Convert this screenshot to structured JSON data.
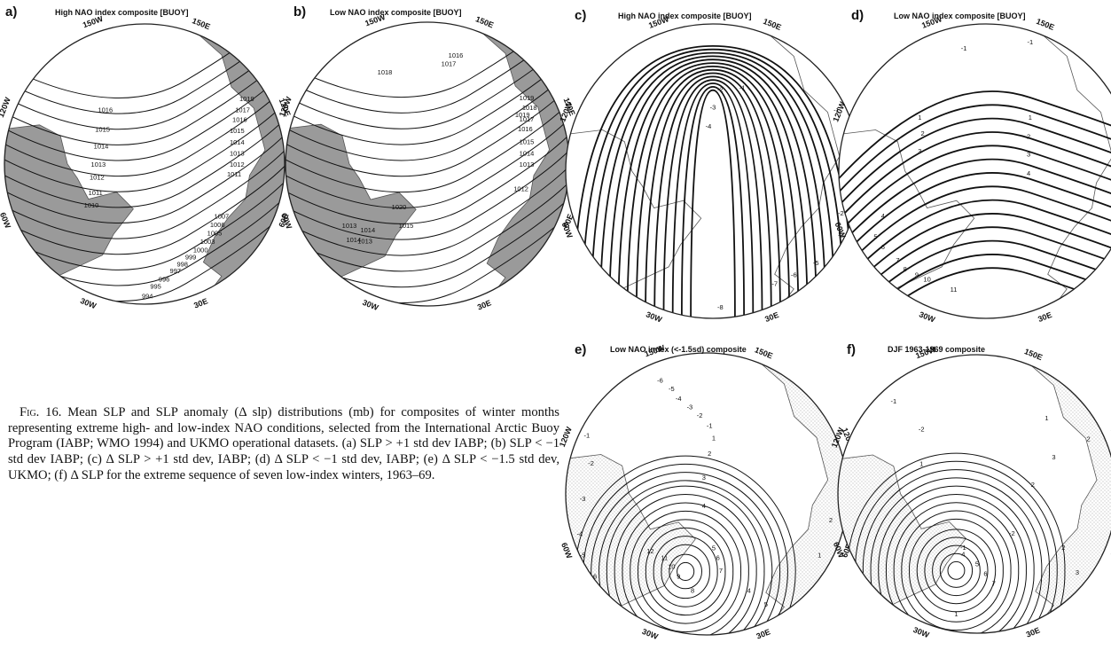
{
  "figure": {
    "panels": [
      {
        "id": "a",
        "label": "a)",
        "title": "High NAO index composite [BUOY]",
        "shaded_land": true,
        "longitudes": [
          "150W",
          "150E",
          "120W",
          "120E",
          "60W",
          "60E",
          "30W",
          "30E"
        ],
        "contour_labels": [
          "1016",
          "1016",
          "1015",
          "1014",
          "1013",
          "1012",
          "1011",
          "1010",
          "1019",
          "1017",
          "1016",
          "1015",
          "1014",
          "1013",
          "1012",
          "1011",
          "1007",
          "1006",
          "1005",
          "1003",
          "1000",
          "999",
          "998",
          "997",
          "996",
          "995",
          "994"
        ]
      },
      {
        "id": "b",
        "label": "b)",
        "title": "Low NAO index composite [BUOY]",
        "shaded_land": true,
        "longitudes": [
          "150W",
          "150E",
          "120W",
          "120E",
          "60W",
          "60E",
          "30W",
          "30E"
        ],
        "contour_labels": [
          "1016",
          "1017",
          "1018",
          "1019",
          "1020",
          "1019",
          "1018",
          "1017",
          "1016",
          "1015",
          "1014",
          "1013",
          "1012",
          "1015",
          "1014",
          "1013",
          "1013",
          "1014"
        ]
      },
      {
        "id": "c",
        "label": "c)",
        "title": "High NAO index composite [BUOY]",
        "shaded_land": false,
        "longitudes": [
          "150W",
          "150E",
          "120W",
          "120E",
          "60W",
          "60E",
          "30W",
          "30E"
        ],
        "contour_labels": [
          "-1",
          "-2",
          "-3",
          "-4",
          "-1",
          "-3",
          "-5",
          "-6",
          "-7",
          "-8",
          "-2"
        ]
      },
      {
        "id": "d",
        "label": "d)",
        "title": "Low NAO index composite [BUOY]",
        "shaded_land": false,
        "longitudes": [
          "150W",
          "150E",
          "120W",
          "120E",
          "60W",
          "60E",
          "30W",
          "30E"
        ],
        "contour_labels": [
          "-1",
          "-1",
          "1",
          "2",
          "3",
          "4",
          "1",
          "2",
          "3",
          "4",
          "5",
          "6",
          "7",
          "8",
          "9",
          "10",
          "11"
        ]
      },
      {
        "id": "e",
        "label": "e)",
        "title": "Low NAO index (<-1.5sd) composite",
        "shaded_land": true,
        "longitudes": [
          "150W",
          "150E",
          "120W",
          "120E",
          "60W",
          "60E",
          "30W",
          "30E"
        ],
        "contour_labels": [
          "-6",
          "-5",
          "-4",
          "-3",
          "-2",
          "-1",
          "1",
          "2",
          "3",
          "4",
          "5",
          "6",
          "7",
          "8",
          "9",
          "10",
          "11",
          "12",
          "-1",
          "-2",
          "-3",
          "-4",
          "-5",
          "-6",
          "2",
          "1",
          "5",
          "4"
        ]
      },
      {
        "id": "f",
        "label": "f)",
        "title": "DJF 1963-1969 composite",
        "shaded_land": true,
        "longitudes": [
          "150W",
          "150E",
          "120W",
          "120E",
          "60W",
          "60E",
          "30W",
          "30E"
        ],
        "contour_labels": [
          "-1",
          "-2",
          "-3",
          "1",
          "2",
          "1",
          "2",
          "3",
          "4",
          "5",
          "6",
          "7",
          "-1",
          "-2",
          "2",
          "3",
          "1",
          "-1"
        ]
      }
    ],
    "caption": {
      "lead": "Fig. 16.",
      "text": "Mean SLP and SLP anomaly (Δ slp) distributions (mb) for composites of winter months representing extreme high- and low-index NAO conditions, selected from the International Arctic Buoy Program (IABP; WMO 1994) and UKMO operational datasets. (a) SLP > +1 std dev IABP; (b) SLP < −1 std dev IABP; (c) Δ SLP > +1 std dev, IABP; (d) Δ SLP < −1 std dev, IABP; (e) Δ SLP < −1.5 std dev, UKMO; (f) Δ SLP for the extreme sequence of seven low-index winters, 1963–69."
    },
    "colors": {
      "ink": "#111111",
      "land_shade": "#9a9a9a",
      "stipple": "#c9c9c9"
    }
  }
}
